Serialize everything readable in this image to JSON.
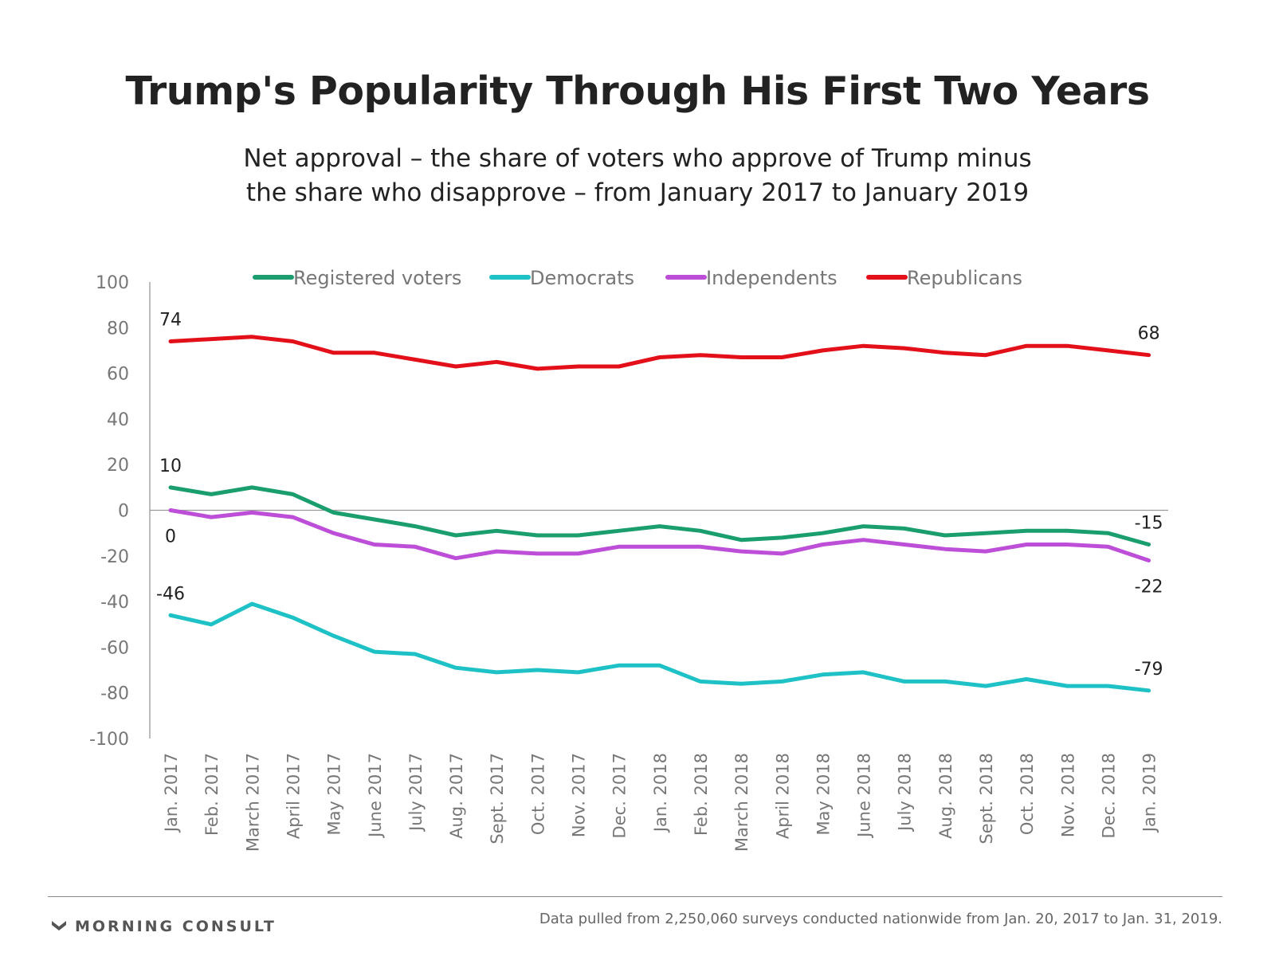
{
  "title": "Trump's Popularity Through His First Two Years",
  "subtitle_lines": [
    "Net approval – the share of voters who approve of Trump minus",
    "the share who disapprove – from January 2017 to January 2019"
  ],
  "footer": {
    "brand": "MORNING CONSULT",
    "note": "Data pulled from 2,250,060 surveys conducted nationwide from Jan. 20, 2017 to Jan. 31, 2019."
  },
  "chart_data": {
    "type": "line",
    "categories": [
      "Jan. 2017",
      "Feb. 2017",
      "March 2017",
      "April 2017",
      "May 2017",
      "June 2017",
      "July 2017",
      "Aug. 2017",
      "Sept. 2017",
      "Oct. 2017",
      "Nov. 2017",
      "Dec. 2017",
      "Jan. 2018",
      "Feb. 2018",
      "March 2018",
      "April 2018",
      "May 2018",
      "June 2018",
      "July 2018",
      "Aug. 2018",
      "Sept. 2018",
      "Oct. 2018",
      "Nov. 2018",
      "Dec. 2018",
      "Jan. 2019"
    ],
    "ylim": [
      -100,
      100
    ],
    "yticks": [
      100,
      80,
      60,
      40,
      20,
      0,
      -20,
      -40,
      -60,
      -80,
      -100
    ],
    "legend_position": "top",
    "grid": false,
    "series": [
      {
        "name": "Registered voters",
        "color": "#1a9e6e",
        "values": [
          10,
          7,
          10,
          7,
          -1,
          -4,
          -7,
          -11,
          -9,
          -11,
          -11,
          -9,
          -7,
          -9,
          -13,
          -12,
          -10,
          -7,
          -8,
          -11,
          -10,
          -9,
          -9,
          -10,
          -15
        ],
        "labels": [
          {
            "index": 0,
            "text": "10",
            "pos": "above"
          },
          {
            "index": 24,
            "text": "-15",
            "pos": "above"
          }
        ]
      },
      {
        "name": "Democrats",
        "color": "#1ec2c6",
        "values": [
          -46,
          -50,
          -41,
          -47,
          -55,
          -62,
          -63,
          -69,
          -71,
          -70,
          -71,
          -68,
          -68,
          -75,
          -76,
          -75,
          -72,
          -71,
          -75,
          -75,
          -77,
          -74,
          -77,
          -77,
          -79
        ],
        "labels": [
          {
            "index": 0,
            "text": "-46",
            "pos": "above"
          },
          {
            "index": 24,
            "text": "-79",
            "pos": "above"
          }
        ]
      },
      {
        "name": "Independents",
        "color": "#bd4ed8",
        "values": [
          0,
          -3,
          -1,
          -3,
          -10,
          -15,
          -16,
          -21,
          -18,
          -19,
          -19,
          -16,
          -16,
          -16,
          -18,
          -19,
          -15,
          -13,
          -15,
          -17,
          -18,
          -15,
          -15,
          -16,
          -22
        ],
        "labels": [
          {
            "index": 0,
            "text": "0",
            "pos": "below"
          },
          {
            "index": 24,
            "text": "-22",
            "pos": "below"
          }
        ]
      },
      {
        "name": "Republicans",
        "color": "#e3101a",
        "values": [
          74,
          75,
          76,
          74,
          69,
          69,
          66,
          63,
          65,
          62,
          63,
          63,
          67,
          68,
          67,
          67,
          70,
          72,
          71,
          69,
          68,
          72,
          72,
          70,
          68
        ],
        "labels": [
          {
            "index": 0,
            "text": "74",
            "pos": "above"
          },
          {
            "index": 24,
            "text": "68",
            "pos": "above"
          }
        ]
      }
    ]
  }
}
